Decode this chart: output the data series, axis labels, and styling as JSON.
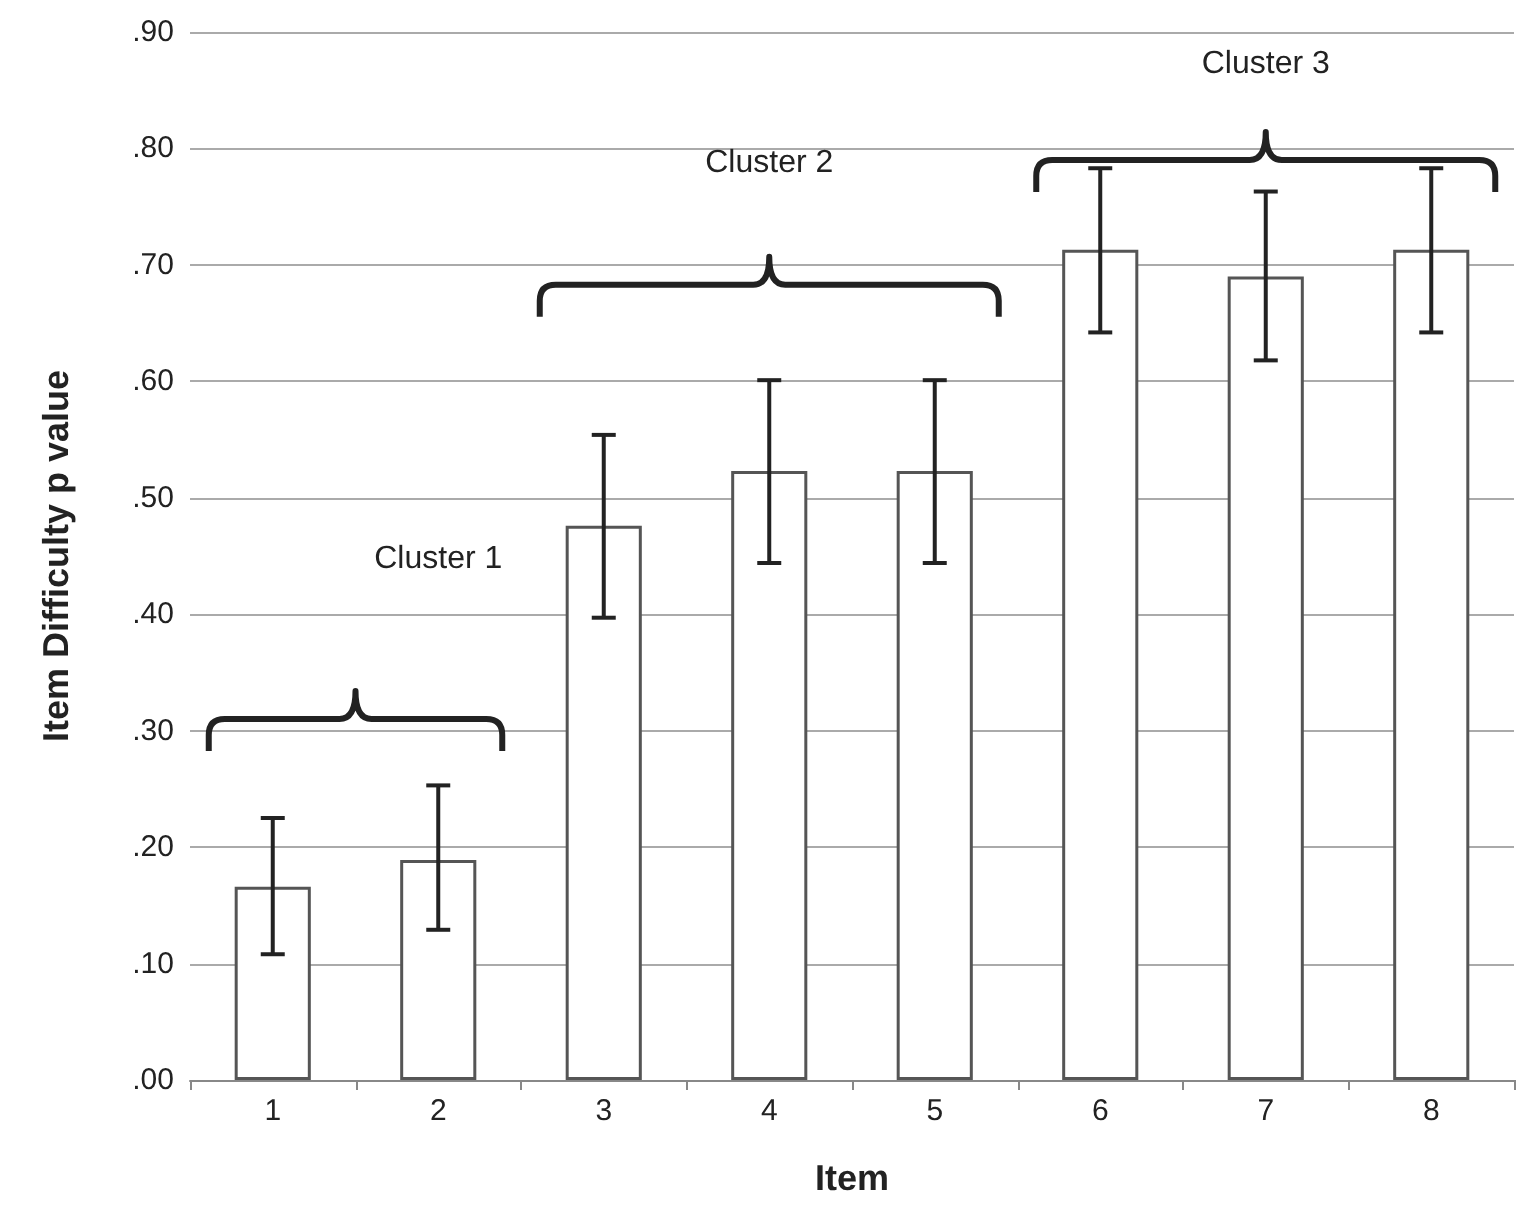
{
  "chart_data": {
    "type": "bar",
    "xlabel": "Item",
    "ylabel": "Item Difficulty p value",
    "categories": [
      "1",
      "2",
      "3",
      "4",
      "5",
      "6",
      "7",
      "8"
    ],
    "values": [
      0.166,
      0.189,
      0.476,
      0.523,
      0.523,
      0.713,
      0.69,
      0.713
    ],
    "errors": [
      [
        0.108,
        0.225
      ],
      [
        0.129,
        0.253
      ],
      [
        0.397,
        0.554
      ],
      [
        0.444,
        0.601
      ],
      [
        0.444,
        0.601
      ],
      [
        0.642,
        0.783
      ],
      [
        0.618,
        0.763
      ],
      [
        0.642,
        0.783
      ]
    ],
    "color": "#ffffff",
    "ylim": [
      0,
      0.9
    ],
    "yticks": [
      {
        "value": 0,
        "label": ".00"
      },
      {
        "value": 0.1,
        "label": ".10"
      },
      {
        "value": 0.2,
        "label": ".20"
      },
      {
        "value": 0.3,
        "label": ".30"
      },
      {
        "value": 0.4,
        "label": ".40"
      },
      {
        "value": 0.5,
        "label": ".50"
      },
      {
        "value": 0.6,
        "label": ".60"
      },
      {
        "value": 0.7,
        "label": ".70"
      },
      {
        "value": 0.8,
        "label": ".80"
      },
      {
        "value": 0.9,
        "label": ".90"
      }
    ],
    "grid": "y",
    "annotations": [
      "Cluster 1",
      "Cluster 2",
      "Cluster 3"
    ]
  }
}
